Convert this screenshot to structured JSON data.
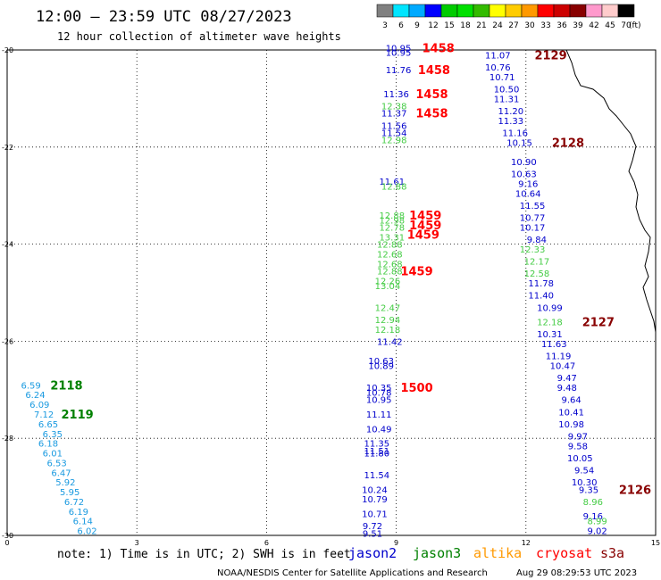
{
  "header": {
    "title": "12:00 – 23:59 UTC 08/27/2023",
    "subtitle": "12 hour collection of altimeter wave heights"
  },
  "legend_scale": {
    "labels": [
      "3",
      "6",
      "9",
      "12",
      "15",
      "18",
      "21",
      "24",
      "27",
      "30",
      "33",
      "36",
      "39",
      "42",
      "45",
      "70"
    ],
    "unit": "(ft)",
    "colors": [
      "#808080",
      "#00e5ff",
      "#00aaff",
      "#0000ff",
      "#00cc00",
      "#00e000",
      "#33bb00",
      "#ffff00",
      "#ffcc00",
      "#ff9900",
      "#ff0000",
      "#cc0000",
      "#880000",
      "#ff99cc",
      "#ffcccc",
      "#000000"
    ]
  },
  "note": "note:  1) Time is in UTC; 2) SWH is in feet",
  "satellites": [
    {
      "name": "jason2",
      "color": "#0000cc"
    },
    {
      "name": "jason3",
      "color": "#008000"
    },
    {
      "name": "altika",
      "color": "#ff9900"
    },
    {
      "name": "cryosat",
      "color": "#ff0000"
    },
    {
      "name": "s3a",
      "color": "#880000"
    }
  ],
  "footer": {
    "left": "NOAA/NESDIS Center for Satellite Applications and Research",
    "right": "Aug 29 08:29:53 UTC 2023"
  },
  "chart_data": {
    "type": "scatter",
    "x_ticks": [
      "0",
      "3",
      "6",
      "9",
      "12",
      "15"
    ],
    "y_ticks": [
      "-20",
      "-22",
      "-24",
      "-26",
      "-28",
      "-30"
    ],
    "xlim": [
      0,
      15
    ],
    "ylim": [
      -30,
      -20
    ],
    "grid": true,
    "series": [
      {
        "color": "#1a9ae0",
        "points": [
          {
            "x": 0.55,
            "y": -26.9,
            "v": "6.59"
          },
          {
            "x": 0.65,
            "y": -27.1,
            "v": "6.24"
          },
          {
            "x": 0.75,
            "y": -27.3,
            "v": "6.09"
          },
          {
            "x": 0.85,
            "y": -27.5,
            "v": "7.12"
          },
          {
            "x": 0.95,
            "y": -27.7,
            "v": "6.65"
          },
          {
            "x": 1.05,
            "y": -27.9,
            "v": "6.35"
          },
          {
            "x": 0.95,
            "y": -28.1,
            "v": "6.18"
          },
          {
            "x": 1.05,
            "y": -28.3,
            "v": "6.01"
          },
          {
            "x": 1.15,
            "y": -28.5,
            "v": "6.53"
          },
          {
            "x": 1.25,
            "y": -28.7,
            "v": "6.47"
          },
          {
            "x": 1.35,
            "y": -28.9,
            "v": "5.92"
          },
          {
            "x": 1.45,
            "y": -29.1,
            "v": "5.95"
          },
          {
            "x": 1.55,
            "y": -29.3,
            "v": "6.72"
          },
          {
            "x": 1.65,
            "y": -29.5,
            "v": "6.19"
          },
          {
            "x": 1.75,
            "y": -29.7,
            "v": "6.14"
          },
          {
            "x": 1.85,
            "y": -29.9,
            "v": "6.02"
          }
        ]
      },
      {
        "color": "#0000cc",
        "points": [
          {
            "x": 9.05,
            "y": -19.95,
            "v": "10.95"
          },
          {
            "x": 9.05,
            "y": -20.05,
            "v": "10.95"
          },
          {
            "x": 9.05,
            "y": -20.4,
            "v": "11.76"
          },
          {
            "x": 9.0,
            "y": -20.9,
            "v": "11.36"
          },
          {
            "x": 8.95,
            "y": -21.3,
            "v": "11.37"
          },
          {
            "x": 8.95,
            "y": -21.55,
            "v": "11.56"
          },
          {
            "x": 8.95,
            "y": -21.7,
            "v": "11.54"
          },
          {
            "x": 8.9,
            "y": -22.7,
            "v": "11.61"
          },
          {
            "x": 8.85,
            "y": -26.0,
            "v": "11.42"
          },
          {
            "x": 8.65,
            "y": -26.4,
            "v": "10.63"
          },
          {
            "x": 8.65,
            "y": -26.5,
            "v": "10.89"
          },
          {
            "x": 8.6,
            "y": -26.95,
            "v": "10.35"
          },
          {
            "x": 8.6,
            "y": -27.05,
            "v": "10.78"
          },
          {
            "x": 8.6,
            "y": -27.2,
            "v": "10.95"
          },
          {
            "x": 8.6,
            "y": -27.5,
            "v": "11.11"
          },
          {
            "x": 8.6,
            "y": -27.8,
            "v": "10.49"
          },
          {
            "x": 8.55,
            "y": -28.1,
            "v": "11.35"
          },
          {
            "x": 8.55,
            "y": -28.25,
            "v": "11.51"
          },
          {
            "x": 8.55,
            "y": -28.3,
            "v": "11.80"
          },
          {
            "x": 8.55,
            "y": -28.75,
            "v": "11.54"
          },
          {
            "x": 8.5,
            "y": -29.05,
            "v": "10.24"
          },
          {
            "x": 8.5,
            "y": -29.25,
            "v": "10.79"
          },
          {
            "x": 8.5,
            "y": -29.55,
            "v": "10.71"
          },
          {
            "x": 8.45,
            "y": -29.8,
            "v": "9.72"
          },
          {
            "x": 8.45,
            "y": -29.95,
            "v": "9.51"
          },
          {
            "x": 11.35,
            "y": -20.1,
            "v": "11.07"
          },
          {
            "x": 11.35,
            "y": -20.35,
            "v": "10.76"
          },
          {
            "x": 11.45,
            "y": -20.55,
            "v": "10.71"
          },
          {
            "x": 11.55,
            "y": -20.8,
            "v": "10.50"
          },
          {
            "x": 11.55,
            "y": -21.0,
            "v": "11.31"
          },
          {
            "x": 11.65,
            "y": -21.25,
            "v": "11.20"
          },
          {
            "x": 11.65,
            "y": -21.45,
            "v": "11.33"
          },
          {
            "x": 11.75,
            "y": -21.7,
            "v": "11.16"
          },
          {
            "x": 11.85,
            "y": -21.9,
            "v": "10.15"
          },
          {
            "x": 11.95,
            "y": -22.3,
            "v": "10.90"
          },
          {
            "x": 11.95,
            "y": -22.55,
            "v": "10.63"
          },
          {
            "x": 12.05,
            "y": -22.75,
            "v": "9.16"
          },
          {
            "x": 12.05,
            "y": -22.95,
            "v": "10.64"
          },
          {
            "x": 12.15,
            "y": -23.2,
            "v": "11.55"
          },
          {
            "x": 12.15,
            "y": -23.45,
            "v": "10.77"
          },
          {
            "x": 12.15,
            "y": -23.65,
            "v": "10.17"
          },
          {
            "x": 12.25,
            "y": -23.9,
            "v": "9.84"
          },
          {
            "x": 12.35,
            "y": -24.8,
            "v": "11.78"
          },
          {
            "x": 12.35,
            "y": -25.05,
            "v": "11.40"
          },
          {
            "x": 12.55,
            "y": -25.3,
            "v": "10.99"
          },
          {
            "x": 12.55,
            "y": -25.85,
            "v": "10.31"
          },
          {
            "x": 12.65,
            "y": -26.05,
            "v": "11.63"
          },
          {
            "x": 12.75,
            "y": -26.3,
            "v": "11.19"
          },
          {
            "x": 12.85,
            "y": -26.5,
            "v": "10.47"
          },
          {
            "x": 12.95,
            "y": -26.75,
            "v": "9.47"
          },
          {
            "x": 12.95,
            "y": -26.95,
            "v": "9.48"
          },
          {
            "x": 13.05,
            "y": -27.2,
            "v": "9.64"
          },
          {
            "x": 13.05,
            "y": -27.45,
            "v": "10.41"
          },
          {
            "x": 13.05,
            "y": -27.7,
            "v": "10.98"
          },
          {
            "x": 13.2,
            "y": -27.95,
            "v": "9.97"
          },
          {
            "x": 13.2,
            "y": -28.15,
            "v": "9.58"
          },
          {
            "x": 13.25,
            "y": -28.4,
            "v": "10.05"
          },
          {
            "x": 13.35,
            "y": -28.65,
            "v": "9.54"
          },
          {
            "x": 13.35,
            "y": -28.9,
            "v": "10.30"
          },
          {
            "x": 13.45,
            "y": -29.05,
            "v": "9.35"
          },
          {
            "x": 13.55,
            "y": -29.6,
            "v": "9.16"
          },
          {
            "x": 13.65,
            "y": -29.9,
            "v": "9.02"
          }
        ]
      },
      {
        "color": "#44cc44",
        "points": [
          {
            "x": 8.95,
            "y": -21.15,
            "v": "12.38"
          },
          {
            "x": 8.95,
            "y": -21.85,
            "v": "12.98"
          },
          {
            "x": 8.95,
            "y": -22.8,
            "v": "12.88"
          },
          {
            "x": 8.9,
            "y": -23.4,
            "v": "12.88"
          },
          {
            "x": 8.9,
            "y": -23.5,
            "v": "12.98"
          },
          {
            "x": 8.9,
            "y": -23.65,
            "v": "12.78"
          },
          {
            "x": 8.9,
            "y": -23.85,
            "v": "13.31"
          },
          {
            "x": 8.85,
            "y": -24.0,
            "v": "12.88"
          },
          {
            "x": 8.85,
            "y": -24.2,
            "v": "12.68"
          },
          {
            "x": 8.85,
            "y": -24.4,
            "v": "12.68"
          },
          {
            "x": 8.85,
            "y": -24.55,
            "v": "12.88"
          },
          {
            "x": 8.8,
            "y": -24.75,
            "v": "12.26"
          },
          {
            "x": 8.8,
            "y": -24.85,
            "v": "13.04"
          },
          {
            "x": 8.8,
            "y": -25.3,
            "v": "12.47"
          },
          {
            "x": 8.8,
            "y": -25.55,
            "v": "12.94"
          },
          {
            "x": 8.8,
            "y": -25.75,
            "v": "12.18"
          },
          {
            "x": 12.15,
            "y": -24.1,
            "v": "12.33"
          },
          {
            "x": 12.25,
            "y": -24.35,
            "v": "12.17"
          },
          {
            "x": 12.25,
            "y": -24.6,
            "v": "12.58"
          },
          {
            "x": 12.55,
            "y": -25.6,
            "v": "12.18"
          },
          {
            "x": 13.55,
            "y": -29.3,
            "v": "8.96"
          },
          {
            "x": 13.65,
            "y": -29.7,
            "v": "8.99"
          }
        ]
      }
    ],
    "pass_labels": [
      {
        "x": 9.6,
        "y": -19.95,
        "text": "1458",
        "color": "#ff0000"
      },
      {
        "x": 9.5,
        "y": -20.4,
        "text": "1458",
        "color": "#ff0000"
      },
      {
        "x": 9.45,
        "y": -20.9,
        "text": "1458",
        "color": "#ff0000"
      },
      {
        "x": 9.45,
        "y": -21.3,
        "text": "1458",
        "color": "#ff0000"
      },
      {
        "x": 9.3,
        "y": -23.4,
        "text": "1459",
        "color": "#ff0000"
      },
      {
        "x": 9.3,
        "y": -23.6,
        "text": "1459",
        "color": "#ff0000"
      },
      {
        "x": 9.25,
        "y": -23.8,
        "text": "1459",
        "color": "#ff0000"
      },
      {
        "x": 9.1,
        "y": -24.55,
        "text": "1459",
        "color": "#ff0000"
      },
      {
        "x": 9.1,
        "y": -26.95,
        "text": "1500",
        "color": "#ff0000"
      },
      {
        "x": 12.2,
        "y": -20.1,
        "text": "2129",
        "color": "#880000"
      },
      {
        "x": 12.6,
        "y": -21.9,
        "text": "2128",
        "color": "#880000"
      },
      {
        "x": 13.3,
        "y": -25.6,
        "text": "2127",
        "color": "#880000"
      },
      {
        "x": 14.15,
        "y": -29.05,
        "text": "2126",
        "color": "#880000"
      },
      {
        "x": 1.0,
        "y": -26.9,
        "text": "2118",
        "color": "#008000"
      },
      {
        "x": 1.25,
        "y": -27.5,
        "text": "2119",
        "color": "#008000"
      }
    ]
  }
}
